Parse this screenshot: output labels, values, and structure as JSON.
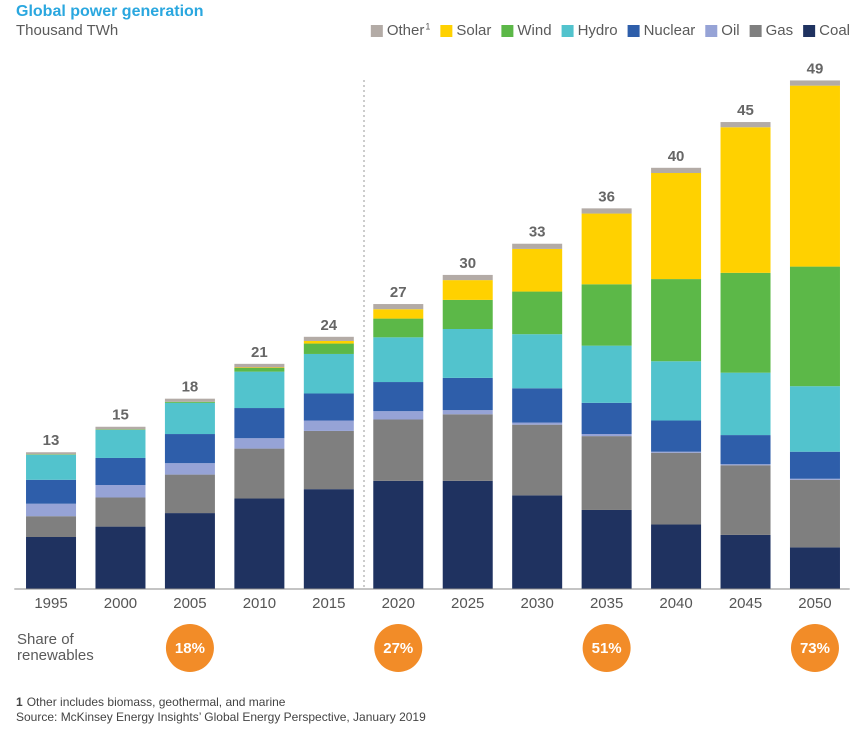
{
  "chart_data": {
    "type": "stacked-bar",
    "title": "Global power generation",
    "subtitle": "Thousand TWh",
    "categories": [
      "1995",
      "2000",
      "2005",
      "2010",
      "2015",
      "2020",
      "2025",
      "2030",
      "2035",
      "2040",
      "2045",
      "2050"
    ],
    "series": [
      {
        "name": "Coal",
        "color": "#1f3260",
        "values": [
          5.0,
          6.0,
          7.3,
          8.7,
          9.6,
          10.4,
          10.4,
          9.0,
          7.6,
          6.2,
          5.2,
          4.0
        ]
      },
      {
        "name": "Gas",
        "color": "#7f7f7f",
        "values": [
          2.0,
          2.8,
          3.7,
          4.8,
          5.6,
          5.9,
          6.4,
          6.8,
          7.1,
          6.9,
          6.7,
          6.5
        ]
      },
      {
        "name": "Oil",
        "color": "#96a3d6",
        "values": [
          1.2,
          1.2,
          1.1,
          1.0,
          1.0,
          0.8,
          0.4,
          0.2,
          0.2,
          0.1,
          0.1,
          0.1
        ]
      },
      {
        "name": "Nuclear",
        "color": "#2e5eaa",
        "values": [
          2.3,
          2.6,
          2.8,
          2.9,
          2.6,
          2.8,
          3.1,
          3.3,
          3.0,
          3.0,
          2.8,
          2.6
        ]
      },
      {
        "name": "Hydro",
        "color": "#52c3cd",
        "values": [
          2.4,
          2.7,
          3.0,
          3.5,
          3.8,
          4.3,
          4.7,
          5.2,
          5.5,
          5.7,
          6.0,
          6.3
        ]
      },
      {
        "name": "Wind",
        "color": "#5cb848",
        "values": [
          0.05,
          0.05,
          0.1,
          0.35,
          1.0,
          1.8,
          2.8,
          4.1,
          5.9,
          7.9,
          9.6,
          11.5
        ]
      },
      {
        "name": "Solar",
        "color": "#ffd100",
        "values": [
          0,
          0,
          0,
          0.05,
          0.25,
          0.9,
          1.9,
          4.1,
          6.8,
          10.2,
          14.0,
          17.4
        ]
      },
      {
        "name": "Other",
        "color": "#b3aba6",
        "values": [
          0.2,
          0.25,
          0.3,
          0.35,
          0.4,
          0.5,
          0.5,
          0.5,
          0.5,
          0.5,
          0.5,
          0.5
        ]
      }
    ],
    "other_note_marker": "1",
    "totals": [
      13,
      15,
      18,
      21,
      24,
      27,
      30,
      33,
      36,
      40,
      45,
      49
    ],
    "renewables_share": {
      "label": "Share of renewables",
      "categories": [
        "2005",
        "2020",
        "2035",
        "2050"
      ],
      "values": [
        18,
        27,
        51,
        73
      ],
      "value_labels": [
        "18%",
        "27%",
        "51%",
        "73%"
      ],
      "color": "#f28c28"
    },
    "footnote": {
      "marker": "1",
      "text": "Other includes biomass, geothermal, and marine"
    },
    "source": "Source: McKinsey Energy Insights’ Global Energy Perspective, January 2019"
  }
}
